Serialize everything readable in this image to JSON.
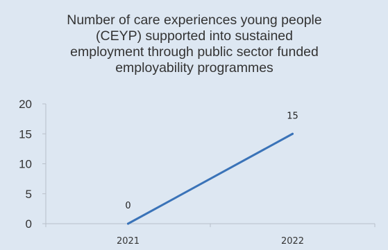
{
  "chart_data": {
    "type": "line",
    "title": "Number of care experiences young people (CEYP) supported into sustained employment through public sector funded employability programmes",
    "title_lines": [
      "Number of care experiences young people",
      "(CEYP) supported into sustained",
      "employment through public sector funded",
      "employability programmes"
    ],
    "categories": [
      "2021",
      "2022"
    ],
    "series": [
      {
        "values": [
          0,
          15
        ],
        "data_labels": [
          "0",
          "15"
        ],
        "color": "#3a73b8"
      }
    ],
    "ylim": [
      0,
      20
    ],
    "yticks": [
      "0",
      "5",
      "10",
      "15",
      "20"
    ],
    "xlabel": "",
    "ylabel": "",
    "grid": false,
    "legend": "none"
  },
  "colors": {
    "background": "#dde7f2",
    "line": "#3a73b8",
    "axis": "#b8bfc9",
    "text": "#333333"
  }
}
